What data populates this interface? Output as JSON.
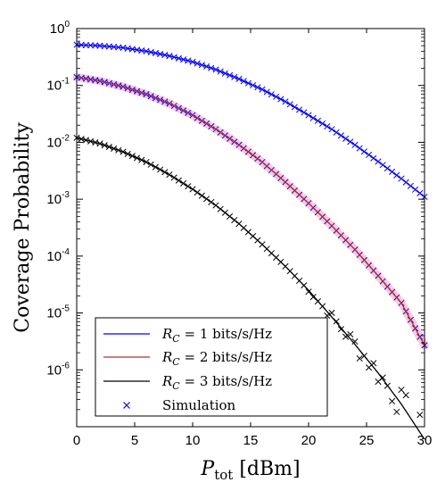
{
  "chart_data": {
    "type": "line",
    "title": "",
    "xlabel": "P",
    "xlabel_sub": "tot",
    "xlabel_unit": "[dBm]",
    "ylabel": "Coverage Probability",
    "xlim": [
      0,
      30
    ],
    "ylim": [
      1e-07,
      1
    ],
    "yscale": "log",
    "grid": false,
    "legend_position": "bottom-left",
    "xticks": [
      "0",
      "5",
      "10",
      "15",
      "20",
      "25",
      "30"
    ],
    "yticks": [
      {
        "base": "10",
        "exp": "0",
        "value": 1
      },
      {
        "base": "10",
        "exp": "-1",
        "value": 0.1
      },
      {
        "base": "10",
        "exp": "-2",
        "value": 0.01
      },
      {
        "base": "10",
        "exp": "-3",
        "value": 0.001
      },
      {
        "base": "10",
        "exp": "-4",
        "value": 0.0001
      },
      {
        "base": "10",
        "exp": "-5",
        "value": 1e-05
      },
      {
        "base": "10",
        "exp": "-6",
        "value": 1e-06
      }
    ],
    "series": [
      {
        "label_var": "R",
        "label_sub": "C",
        "label_rest": " = 1 bits/s/Hz",
        "color": "#0000ff",
        "x": [
          0,
          2,
          4,
          6,
          8,
          10,
          12,
          14,
          16,
          18,
          20,
          22,
          24,
          26,
          28,
          30
        ],
        "y": [
          0.52,
          0.5,
          0.46,
          0.4,
          0.33,
          0.26,
          0.19,
          0.13,
          0.085,
          0.052,
          0.03,
          0.017,
          0.009,
          0.0046,
          0.0023,
          0.0011
        ]
      },
      {
        "label_var": "R",
        "label_sub": "C",
        "label_rest": " = 2 bits/s/Hz",
        "color": "#b03020",
        "x": [
          0,
          2,
          4,
          6,
          8,
          10,
          12,
          14,
          16,
          18,
          20,
          22,
          24,
          26,
          28,
          30
        ],
        "y": [
          0.14,
          0.12,
          0.095,
          0.07,
          0.048,
          0.03,
          0.017,
          0.009,
          0.0045,
          0.002,
          0.00085,
          0.00034,
          0.00013,
          4.5e-05,
          1.5e-05,
          2.7e-06
        ]
      },
      {
        "label_var": "R",
        "label_sub": "C",
        "label_rest": " = 3 bits/s/Hz",
        "color": "#000000",
        "x": [
          0,
          2,
          4,
          6,
          8,
          10,
          12,
          14,
          16,
          18,
          20,
          22,
          24,
          26,
          28,
          30
        ],
        "y": [
          0.012,
          0.0095,
          0.0068,
          0.0045,
          0.0027,
          0.0015,
          0.00078,
          0.00037,
          0.00016,
          6.6e-05,
          2.5e-05,
          8.5e-06,
          2.8e-06,
          8.8e-07,
          2.5e-07,
          6e-08
        ]
      }
    ],
    "simulation": {
      "label": "Simulation",
      "marker": "x",
      "color": "#0000ff"
    }
  }
}
